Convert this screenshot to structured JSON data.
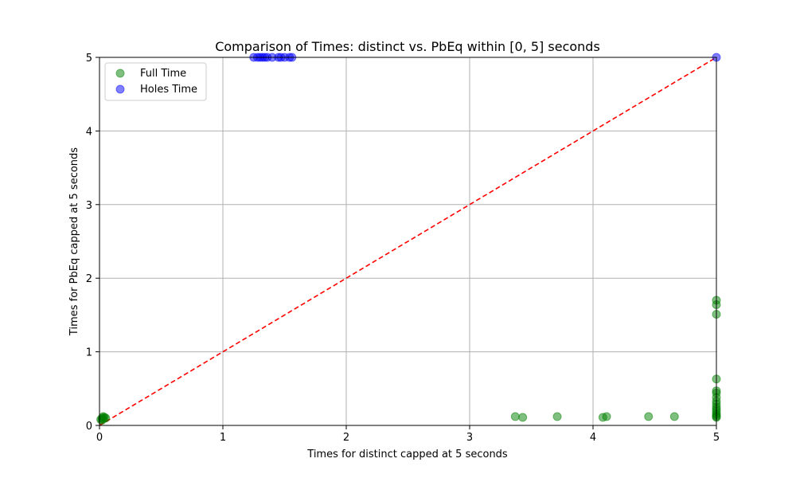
{
  "chart_data": {
    "type": "scatter",
    "title": "Comparison of Times: distinct vs. PbEq within [0, 5] seconds",
    "xlabel": "Times for distinct capped at 5 seconds",
    "ylabel": "Times for PbEq capped at 5 seconds",
    "xlim": [
      0,
      5
    ],
    "ylim": [
      0,
      5
    ],
    "xticks": [
      "0",
      "1",
      "2",
      "3",
      "4",
      "5"
    ],
    "yticks": [
      "0",
      "1",
      "2",
      "3",
      "4",
      "5"
    ],
    "grid": true,
    "legend_position": "top-left",
    "diagonal_line": {
      "from": [
        0,
        0
      ],
      "to": [
        5,
        5
      ],
      "color": "#ff0000",
      "style": "dashed"
    },
    "series": [
      {
        "name": "Full Time",
        "color": "#008000",
        "points": [
          [
            0.01,
            0.08
          ],
          [
            0.02,
            0.1
          ],
          [
            0.03,
            0.09
          ],
          [
            0.04,
            0.11
          ],
          [
            0.02,
            0.07
          ],
          [
            0.05,
            0.1
          ],
          [
            0.03,
            0.12
          ],
          [
            3.37,
            0.12
          ],
          [
            3.43,
            0.11
          ],
          [
            3.71,
            0.12
          ],
          [
            4.08,
            0.11
          ],
          [
            4.11,
            0.12
          ],
          [
            4.45,
            0.12
          ],
          [
            4.66,
            0.12
          ],
          [
            5.0,
            1.7
          ],
          [
            5.0,
            1.64
          ],
          [
            5.0,
            1.51
          ],
          [
            5.0,
            0.63
          ],
          [
            5.0,
            0.47
          ],
          [
            5.0,
            0.44
          ],
          [
            5.0,
            0.38
          ],
          [
            5.0,
            0.33
          ],
          [
            5.0,
            0.29
          ],
          [
            5.0,
            0.25
          ],
          [
            5.0,
            0.22
          ],
          [
            5.0,
            0.19
          ],
          [
            5.0,
            0.16
          ],
          [
            5.0,
            0.14
          ],
          [
            5.0,
            0.12
          ],
          [
            5.0,
            0.11
          ]
        ]
      },
      {
        "name": "Holes Time",
        "color": "#0000ff",
        "points": [
          [
            1.25,
            5.0
          ],
          [
            1.28,
            5.0
          ],
          [
            1.3,
            5.0
          ],
          [
            1.32,
            5.0
          ],
          [
            1.34,
            5.0
          ],
          [
            1.36,
            5.0
          ],
          [
            1.4,
            5.0
          ],
          [
            1.45,
            5.0
          ],
          [
            1.47,
            5.0
          ],
          [
            1.5,
            5.0
          ],
          [
            1.54,
            5.0
          ],
          [
            1.56,
            5.0
          ],
          [
            5.0,
            5.0
          ]
        ]
      }
    ]
  }
}
